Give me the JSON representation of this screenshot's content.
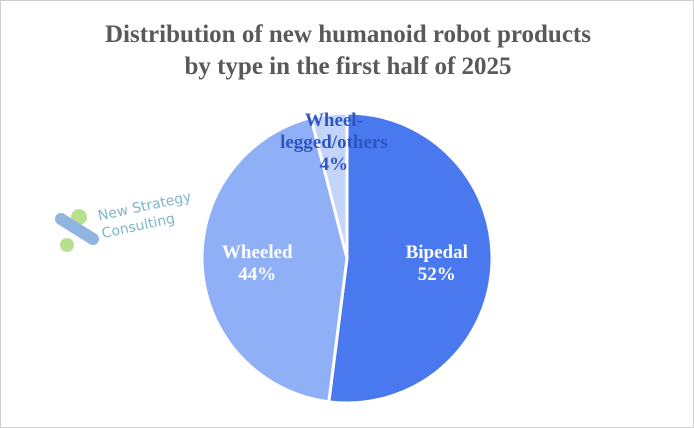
{
  "chart_data": {
    "type": "pie",
    "title": "Distribution of new humanoid robot products by type in the first half of 2025",
    "categories": [
      "Bipedal",
      "Wheeled",
      "Wheel-legged/others"
    ],
    "values": [
      52,
      44,
      4
    ],
    "value_labels": [
      "52%",
      "44%",
      "4%"
    ],
    "colors": [
      "#4a78ee",
      "#8fb0f6",
      "#c3d5fb"
    ],
    "label_colors": [
      "#ffffff",
      "#ffffff",
      "#2f55c0"
    ],
    "watermark": "New Strategy Consulting"
  }
}
